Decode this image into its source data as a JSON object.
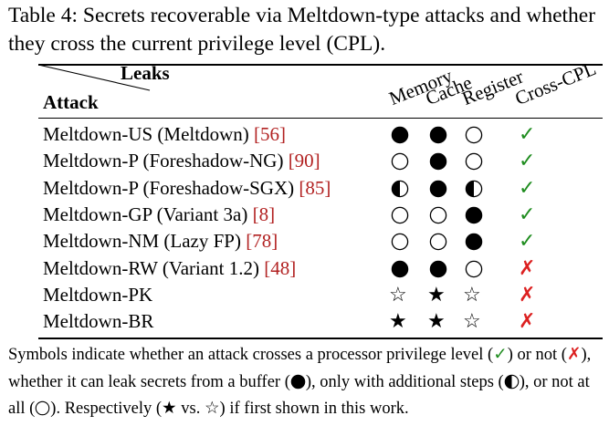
{
  "caption": "Table 4: Secrets recoverable via Meltdown-type attacks and whether they cross the current privilege level (CPL).",
  "header": {
    "leaks_label": "Leaks",
    "attack_label": "Attack",
    "columns": [
      "Memory",
      "Cache",
      "Register",
      "Cross-CPL"
    ]
  },
  "rows": [
    {
      "name": "Meltdown-US (Meltdown) ",
      "ref": "[56]",
      "memory": "full",
      "cache": "full",
      "register": "none",
      "cross_cpl": "yes"
    },
    {
      "name": "Meltdown-P (Foreshadow-NG) ",
      "ref": "[90]",
      "memory": "none",
      "cache": "full",
      "register": "none",
      "cross_cpl": "yes"
    },
    {
      "name": "Meltdown-P (Foreshadow-SGX) ",
      "ref": "[85]",
      "memory": "half",
      "cache": "full",
      "register": "half",
      "cross_cpl": "yes"
    },
    {
      "name": "Meltdown-GP (Variant 3a) ",
      "ref": "[8]",
      "memory": "none",
      "cache": "none",
      "register": "full",
      "cross_cpl": "yes"
    },
    {
      "name": "Meltdown-NM (Lazy FP) ",
      "ref": "[78]",
      "memory": "none",
      "cache": "none",
      "register": "full",
      "cross_cpl": "yes"
    },
    {
      "name": "Meltdown-RW (Variant 1.2) ",
      "ref": "[48]",
      "memory": "full",
      "cache": "full",
      "register": "none",
      "cross_cpl": "no"
    },
    {
      "name": "Meltdown-PK",
      "ref": "",
      "memory": "star-empty",
      "cache": "star-filled",
      "register": "star-empty",
      "cross_cpl": "no"
    },
    {
      "name": "Meltdown-BR",
      "ref": "",
      "memory": "star-filled",
      "cache": "star-filled",
      "register": "star-empty",
      "cross_cpl": "no"
    }
  ],
  "marks": {
    "yes": "✓",
    "no": "✗",
    "star_filled": "★",
    "star_empty": "☆"
  },
  "colors": {
    "yes": "#1e8c1e",
    "no": "#dc2020",
    "ref": "#b22222"
  },
  "note": {
    "p1": "Symbols indicate whether an attack crosses a processor privilege level (",
    "p2": ") or not (",
    "p3": "), whether it can leak secrets from a buffer (",
    "p4": "), only with additional steps (",
    "p5": "), or not at all (",
    "p6": "). Respectively (",
    "p7": " vs. ",
    "p8": ") if first shown in this work."
  }
}
